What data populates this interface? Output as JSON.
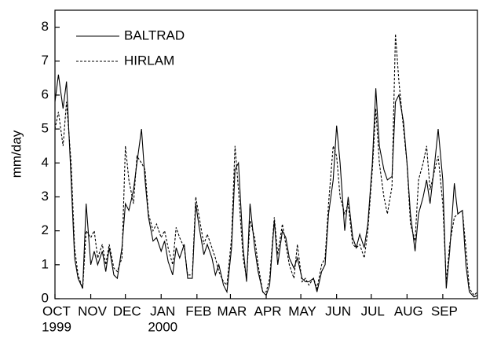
{
  "chart_data": {
    "type": "line",
    "y_label": "mm/day",
    "xlim": [
      0,
      366
    ],
    "xticks": [
      {
        "value": 0,
        "label": "OCT"
      },
      {
        "value": 31,
        "label": "NOV"
      },
      {
        "value": 61,
        "label": "DEC"
      },
      {
        "value": 92,
        "label": "JAN"
      },
      {
        "value": 123,
        "label": "FEB"
      },
      {
        "value": 152,
        "label": "MAR"
      },
      {
        "value": 183,
        "label": "APR"
      },
      {
        "value": 213,
        "label": "MAY"
      },
      {
        "value": 244,
        "label": "JUN"
      },
      {
        "value": 274,
        "label": "JUL"
      },
      {
        "value": 305,
        "label": "AUG"
      },
      {
        "value": 336,
        "label": "SEP"
      }
    ],
    "year_labels": [
      {
        "value": 0,
        "label": "1999"
      },
      {
        "value": 92,
        "label": "2000"
      }
    ],
    "ylim": [
      0,
      8.5
    ],
    "yticks": [
      0,
      1,
      2,
      3,
      4,
      5,
      6,
      7,
      8
    ],
    "legend": "upper left",
    "x": [
      0,
      3,
      7,
      10,
      14,
      17,
      20,
      24,
      27,
      31,
      34,
      37,
      41,
      44,
      47,
      51,
      54,
      58,
      61,
      64,
      68,
      71,
      75,
      78,
      81,
      85,
      88,
      92,
      95,
      98,
      102,
      105,
      108,
      112,
      115,
      119,
      122,
      125,
      129,
      132,
      136,
      139,
      142,
      146,
      149,
      153,
      156,
      159,
      163,
      166,
      169,
      173,
      176,
      180,
      183,
      186,
      190,
      193,
      197,
      200,
      203,
      207,
      210,
      214,
      217,
      220,
      224,
      227,
      231,
      234,
      237,
      241,
      244,
      247,
      251,
      254,
      258,
      261,
      264,
      268,
      271,
      275,
      278,
      281,
      285,
      288,
      292,
      295,
      298,
      302,
      305,
      308,
      312,
      315,
      319,
      322,
      325,
      329,
      332,
      336,
      339,
      342,
      346,
      349,
      353,
      356,
      359,
      363,
      366
    ],
    "series": [
      {
        "name": "BALTRAD",
        "color": "#000000",
        "dash": "none",
        "values": [
          5.8,
          6.6,
          5.6,
          6.4,
          3.5,
          1.2,
          0.6,
          0.3,
          2.8,
          1.0,
          1.4,
          1.0,
          1.4,
          0.8,
          1.5,
          0.7,
          0.6,
          1.5,
          2.8,
          2.6,
          3.2,
          4.0,
          5.0,
          3.5,
          2.4,
          1.7,
          1.8,
          1.4,
          1.7,
          1.1,
          0.7,
          1.5,
          1.2,
          1.6,
          0.6,
          0.6,
          2.8,
          2.1,
          1.3,
          1.6,
          1.2,
          0.7,
          1.0,
          0.4,
          0.2,
          1.5,
          3.8,
          4.0,
          1.5,
          0.5,
          2.8,
          1.5,
          0.8,
          0.2,
          0.1,
          0.4,
          2.3,
          1.0,
          2.0,
          1.8,
          1.2,
          0.9,
          1.2,
          0.6,
          0.5,
          0.5,
          0.6,
          0.2,
          0.8,
          1.0,
          2.5,
          3.5,
          5.1,
          4.0,
          2.0,
          3.0,
          1.8,
          1.5,
          1.9,
          1.5,
          2.2,
          4.0,
          6.2,
          4.5,
          3.8,
          3.5,
          3.6,
          5.8,
          6.0,
          5.2,
          4.0,
          2.5,
          1.4,
          2.5,
          3.0,
          3.5,
          2.8,
          4.0,
          5.0,
          3.5,
          0.3,
          1.4,
          3.4,
          2.5,
          2.6,
          1.0,
          0.2,
          0.05,
          0.1
        ]
      },
      {
        "name": "HIRLAM",
        "color": "#000000",
        "dash": "3,2",
        "values": [
          5.0,
          5.5,
          4.5,
          5.8,
          4.0,
          1.5,
          0.7,
          0.3,
          2.0,
          1.8,
          2.0,
          1.2,
          1.6,
          1.0,
          1.6,
          0.9,
          0.8,
          1.2,
          4.5,
          3.5,
          2.8,
          4.2,
          4.0,
          3.8,
          2.5,
          2.0,
          2.2,
          1.8,
          2.0,
          1.5,
          1.0,
          2.1,
          1.8,
          1.5,
          0.7,
          0.7,
          3.0,
          2.4,
          1.6,
          1.9,
          1.5,
          1.2,
          0.8,
          0.5,
          0.4,
          1.8,
          4.5,
          3.2,
          1.2,
          0.6,
          2.3,
          1.8,
          1.0,
          0.2,
          0.2,
          0.6,
          2.4,
          1.3,
          2.2,
          1.6,
          1.0,
          0.6,
          1.6,
          0.5,
          0.6,
          0.4,
          0.6,
          0.3,
          1.0,
          1.2,
          2.8,
          4.5,
          4.2,
          3.0,
          2.5,
          2.8,
          1.6,
          1.5,
          1.6,
          1.2,
          2.0,
          3.8,
          5.6,
          4.0,
          3.0,
          2.5,
          3.3,
          7.8,
          6.4,
          5.0,
          4.0,
          2.2,
          1.7,
          3.5,
          4.0,
          4.5,
          3.2,
          3.8,
          4.2,
          2.8,
          0.5,
          1.6,
          2.4,
          2.5,
          2.6,
          1.5,
          0.3,
          0.1,
          0.2
        ]
      }
    ]
  }
}
